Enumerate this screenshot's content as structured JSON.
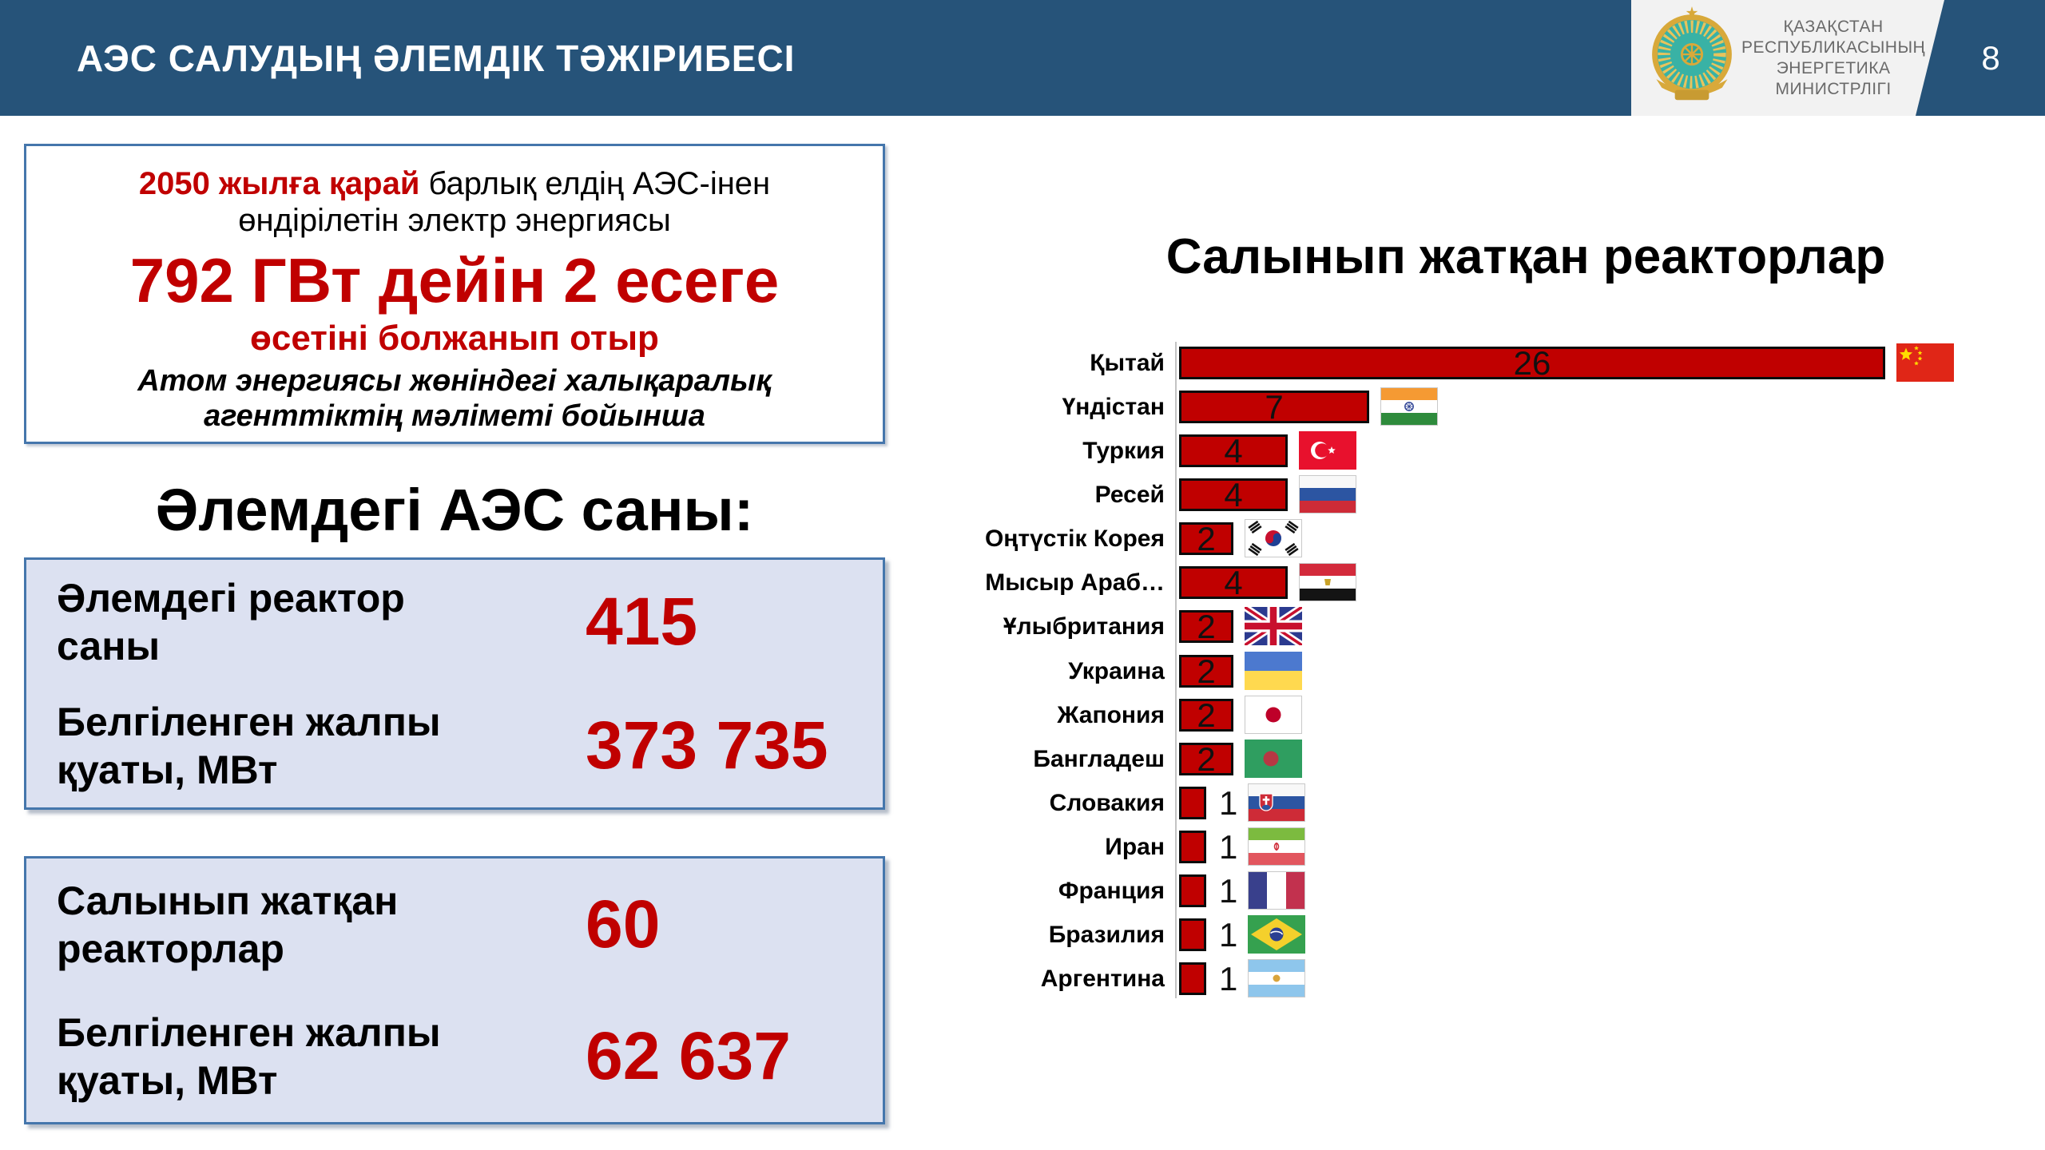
{
  "header": {
    "title": "АЭС САЛУДЫҢ ӘЛЕМДІК ТӘЖІРИБЕСІ",
    "page_number": "8",
    "ministry_lines": [
      "ҚАЗАҚСТАН",
      "РЕСПУБЛИКАСЫНЫҢ",
      "ЭНЕРГЕТИКА",
      "МИНИСТРЛІГІ"
    ],
    "emblem_icon": "kazakhstan-coat-of-arms",
    "colors": {
      "header_bg": "#265379",
      "plate_bg": "#F2F2F2",
      "ministry_text": "#6a6a6a"
    }
  },
  "forecast_box": {
    "line1_red": "2050 жылға қарай",
    "line1_black": " барлық елдің АЭС-інен",
    "line2": "өндірілетін электр энергиясы",
    "big_line": "792 ГВт дейін 2 есеге",
    "red_line": "өсетіні болжанып отыр",
    "source_line1": "Атом энергиясы жөніндегі халықаралық",
    "source_line2": "агенттіктің мәліметі бойынша",
    "accent_red": "#C00000"
  },
  "world_stats": {
    "heading": "Әлемдегі АЭС саны:",
    "rows": [
      {
        "label": "Әлемдегі реактор саны",
        "value": "415"
      },
      {
        "label": "Белгіленген жалпы қуаты, МВт",
        "value": "373 735"
      }
    ]
  },
  "construction_stats": {
    "rows": [
      {
        "label": "Салынып жатқан реакторлар",
        "value": "60"
      },
      {
        "label": "Белгіленген жалпы қуаты, МВт",
        "value": "62 637"
      }
    ]
  },
  "chart_data": {
    "type": "bar",
    "orientation": "horizontal",
    "title": "Салынып жатқан реакторлар",
    "categories": [
      "Қытай",
      "Үндістан",
      "Туркия",
      "Ресей",
      "Оңтүстік Корея",
      "Мысыр Араб…",
      "Ұлыбритания",
      "Украина",
      "Жапония",
      "Бангладеш",
      "Словакия",
      "Иран",
      "Франция",
      "Бразилия",
      "Аргентина"
    ],
    "values": [
      26,
      7,
      4,
      4,
      2,
      4,
      2,
      2,
      2,
      2,
      1,
      1,
      1,
      1,
      1
    ],
    "flags": [
      "flag-china",
      "flag-india",
      "flag-turkey",
      "flag-russia",
      "flag-south-korea",
      "flag-egypt",
      "flag-uk",
      "flag-ukraine",
      "flag-japan",
      "flag-bangladesh",
      "flag-slovakia",
      "flag-iran",
      "flag-france",
      "flag-brazil",
      "flag-argentina"
    ],
    "bar_color": "#C00000",
    "bar_border_color": "#0b0b0b",
    "value_label_color": "#111111",
    "xlim": [
      0,
      28
    ],
    "grid": false,
    "legend": "none"
  }
}
